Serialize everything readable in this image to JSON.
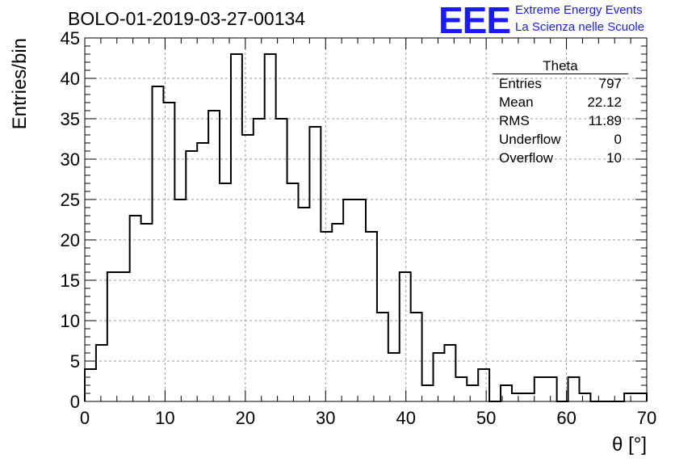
{
  "chart_data": {
    "type": "bar",
    "title": "BOLO-01-2019-03-27-00134",
    "xlabel": "θ [°]",
    "ylabel": "Entries/bin",
    "xlim": [
      0,
      70
    ],
    "ylim": [
      0,
      45
    ],
    "xticks": [
      0,
      10,
      20,
      30,
      40,
      50,
      60,
      70
    ],
    "yticks": [
      0,
      5,
      10,
      15,
      20,
      25,
      30,
      35,
      40,
      45
    ],
    "grid": true,
    "bin_width": 1.4,
    "values": [
      4,
      7,
      16,
      16,
      23,
      22,
      39,
      37,
      25,
      31,
      32,
      36,
      27,
      43,
      33,
      35,
      43,
      35,
      27,
      24,
      34,
      21,
      22,
      25,
      25,
      21,
      11,
      6,
      16,
      11,
      2,
      6,
      7,
      3,
      2,
      4,
      0,
      2,
      1,
      1,
      3,
      3,
      0,
      3,
      1,
      0,
      0,
      0,
      1,
      1
    ]
  },
  "logo": {
    "mark": "EEE",
    "line1": "Extreme Energy Events",
    "line2": "La Scienza nelle Scuole"
  },
  "stats": {
    "title": "Theta",
    "rows": [
      {
        "label": "Entries",
        "value": "797"
      },
      {
        "label": "Mean",
        "value": "22.12"
      },
      {
        "label": "RMS",
        "value": "11.89"
      },
      {
        "label": "Underflow",
        "value": "0"
      },
      {
        "label": "Overflow",
        "value": "10"
      }
    ]
  }
}
